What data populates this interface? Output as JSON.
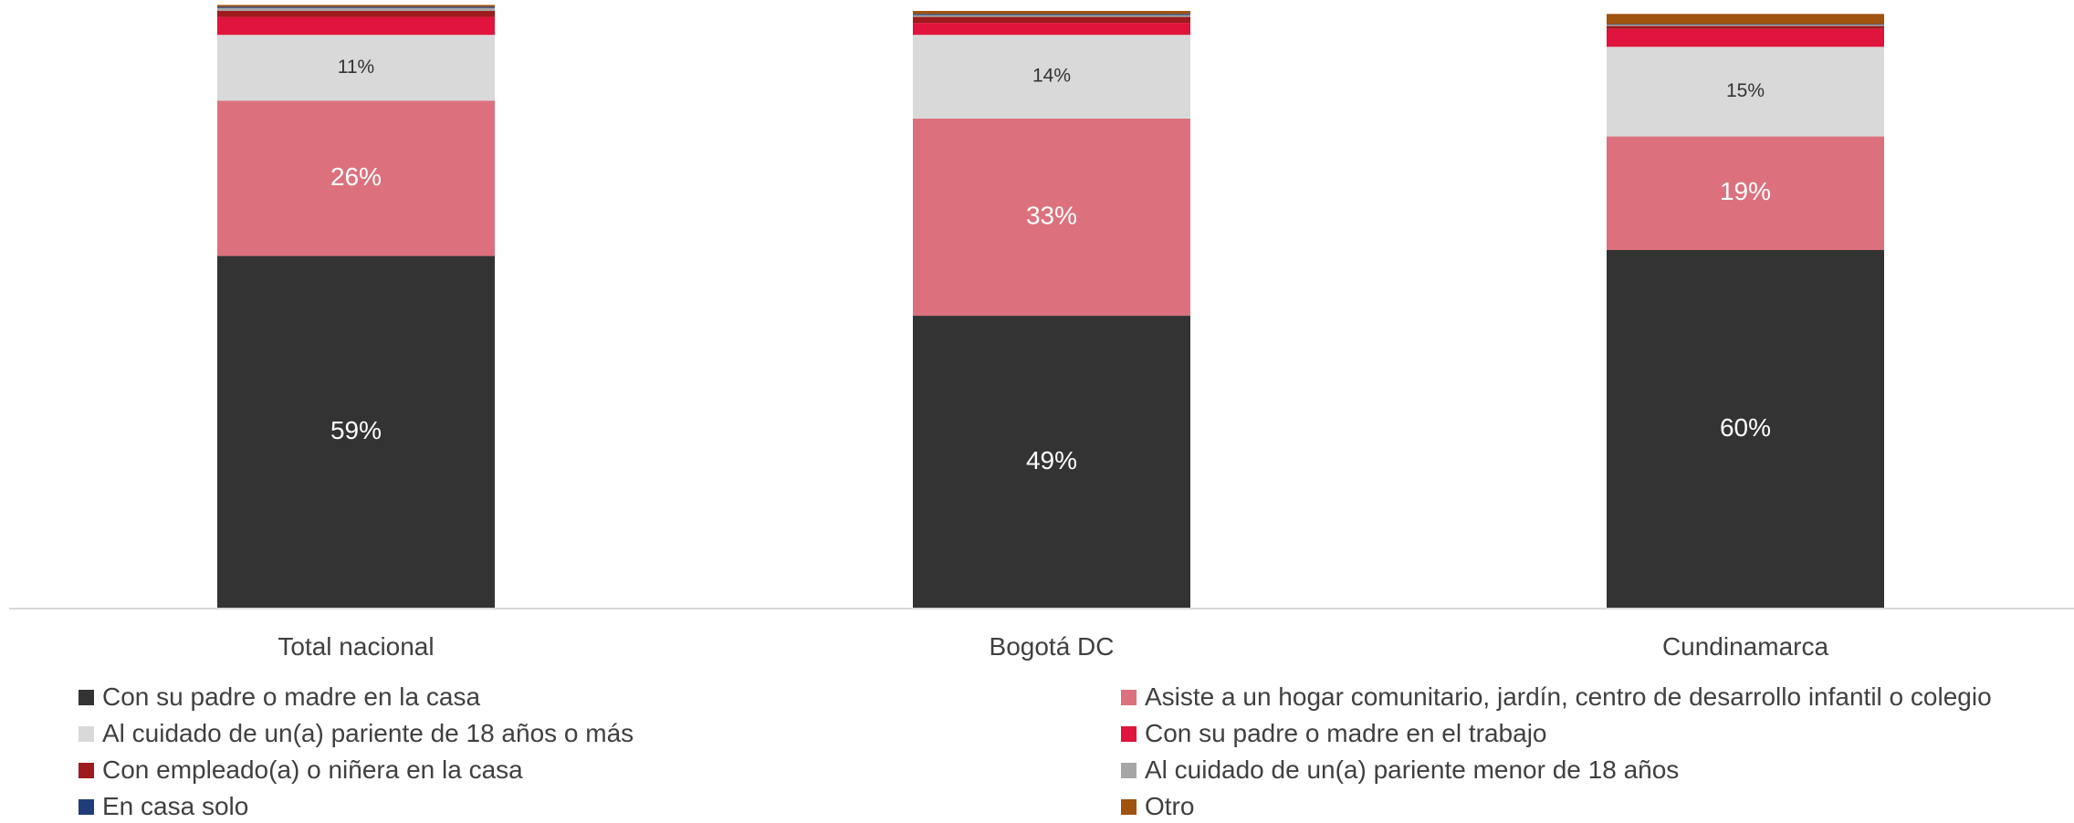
{
  "chart_data": {
    "type": "bar",
    "stacked": true,
    "categories": [
      "Total nacional",
      "Bogotá DC",
      "Cundinamarca"
    ],
    "ylim": [
      0,
      100
    ],
    "grid": false,
    "legend_position": "bottom",
    "series": [
      {
        "name": "Con su padre o madre en la casa",
        "color": "#333333",
        "values": [
          59,
          49,
          60
        ],
        "labels": [
          "59%",
          "49%",
          "60%"
        ],
        "label_color": "#ffffff"
      },
      {
        "name": "Asiste a un hogar comunitario, jardín, centro de desarrollo infantil o colegio",
        "color": "#dc717d",
        "values": [
          26,
          33,
          19
        ],
        "labels": [
          "26%",
          "33%",
          "19%"
        ],
        "label_color": "#ffffff"
      },
      {
        "name": "Al cuidado de un(a) pariente de 18 años o más",
        "color": "#d9d9d9",
        "values": [
          11,
          14,
          15
        ],
        "labels": [
          "11%",
          "14%",
          "15%"
        ],
        "label_color": "#333333"
      },
      {
        "name": "Con su padre o madre en el trabajo",
        "color": "#e0143c",
        "values": [
          3,
          2,
          3
        ]
      },
      {
        "name": "Con empleado(a) o niñera en la casa",
        "color": "#9e1b1e",
        "values": [
          1,
          1,
          0.5
        ]
      },
      {
        "name": "Al cuidado de un(a) pariente menor de 18 años",
        "color": "#a6a6a6",
        "values": [
          0.5,
          0.3,
          0.2
        ]
      },
      {
        "name": "En casa solo",
        "color": "#1f3d7a",
        "values": [
          0.2,
          0.2,
          0.1
        ]
      },
      {
        "name": "Otro",
        "color": "#a0520f",
        "values": [
          0.3,
          0.5,
          1.7
        ]
      }
    ]
  }
}
